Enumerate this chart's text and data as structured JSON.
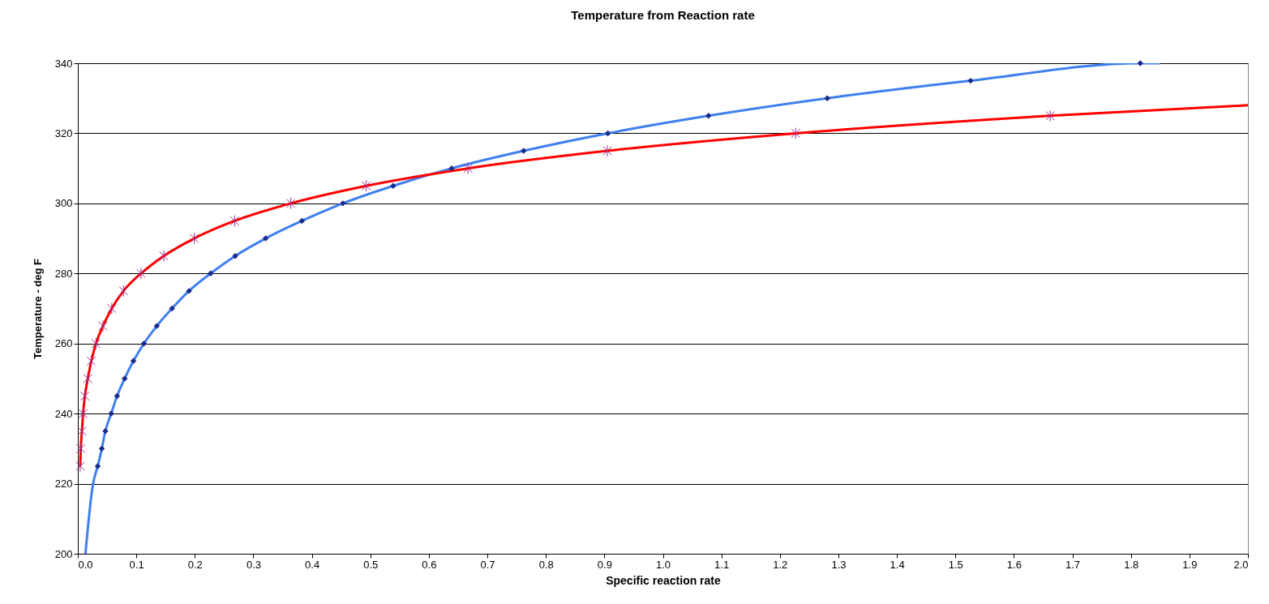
{
  "chart_data": {
    "type": "scatter",
    "title": "Temperature from Reaction rate",
    "xlabel": "Specific reaction rate",
    "ylabel": "Temperature - deg F",
    "xlim": [
      0,
      2
    ],
    "xticks": [
      {
        "value": 0,
        "label": "0.0"
      },
      0.1,
      0.2,
      0.3,
      0.4,
      0.5,
      0.6,
      0.7,
      0.8,
      0.9,
      {
        "value": 1,
        "label": "1.0"
      },
      1.1,
      1.2,
      1.3,
      1.4,
      1.5,
      1.6,
      1.7,
      1.8,
      1.9,
      {
        "value": 2,
        "label": "2.0"
      }
    ],
    "ylim": [
      200,
      340
    ],
    "yticks": [
      200,
      220,
      240,
      260,
      280,
      300,
      320,
      340
    ],
    "grid": "y",
    "series": [
      {
        "type": "line",
        "color": "#3f7ff0",
        "line_style": "solid",
        "x": [
          0.013,
          0.026,
          0.034,
          0.041,
          0.047,
          0.057,
          0.067,
          0.08,
          0.095,
          0.113,
          0.135,
          0.161,
          0.19,
          0.227,
          0.269,
          0.321,
          0.383,
          0.453,
          0.539,
          0.639,
          0.762,
          0.906,
          1.078,
          1.281,
          1.526,
          1.816,
          1.85
        ],
        "values": [
          200,
          220,
          225,
          230,
          235,
          240,
          245,
          250,
          255,
          260,
          265,
          270,
          275,
          280,
          285,
          290,
          295,
          300,
          305,
          310,
          315,
          320,
          325,
          330,
          335,
          340,
          340
        ]
      },
      {
        "type": "line",
        "color": "#ff0000",
        "line_style": "solid",
        "x": [
          0.004,
          0.005,
          0.007,
          0.009,
          0.012,
          0.017,
          0.023,
          0.031,
          0.043,
          0.058,
          0.078,
          0.108,
          0.147,
          0.199,
          0.268,
          0.364,
          0.493,
          0.667,
          0.905,
          1.227,
          1.662,
          2.0
        ],
        "values": [
          225,
          230,
          235,
          240,
          245,
          250,
          255,
          260,
          265,
          270,
          275,
          280,
          285,
          290,
          295,
          300,
          305,
          310,
          315,
          320,
          325,
          328
        ]
      },
      {
        "marker": "diamond",
        "color": "#1a2a8c",
        "x": [
          0.034,
          0.041,
          0.047,
          0.057,
          0.067,
          0.08,
          0.095,
          0.113,
          0.135,
          0.161,
          0.19,
          0.227,
          0.269,
          0.321,
          0.383,
          0.453,
          0.539,
          0.639,
          0.762,
          0.906,
          1.078,
          1.281,
          1.526,
          1.816
        ],
        "values": [
          225,
          230,
          235,
          240,
          245,
          250,
          255,
          260,
          265,
          270,
          275,
          280,
          285,
          290,
          295,
          300,
          305,
          310,
          315,
          320,
          325,
          330,
          335,
          340
        ]
      },
      {
        "marker": "cross",
        "color": "#9b2d8e",
        "x": [
          0.004,
          0.005,
          0.007,
          0.009,
          0.012,
          0.017,
          0.023,
          0.031,
          0.043,
          0.058,
          0.078,
          0.108,
          0.147,
          0.199,
          0.268,
          0.364,
          0.493,
          0.667,
          0.905,
          1.227,
          1.662
        ],
        "values": [
          225,
          230,
          235,
          240,
          245,
          250,
          255,
          260,
          265,
          270,
          275,
          280,
          285,
          290,
          295,
          300,
          305,
          310,
          315,
          320,
          325
        ]
      }
    ]
  }
}
